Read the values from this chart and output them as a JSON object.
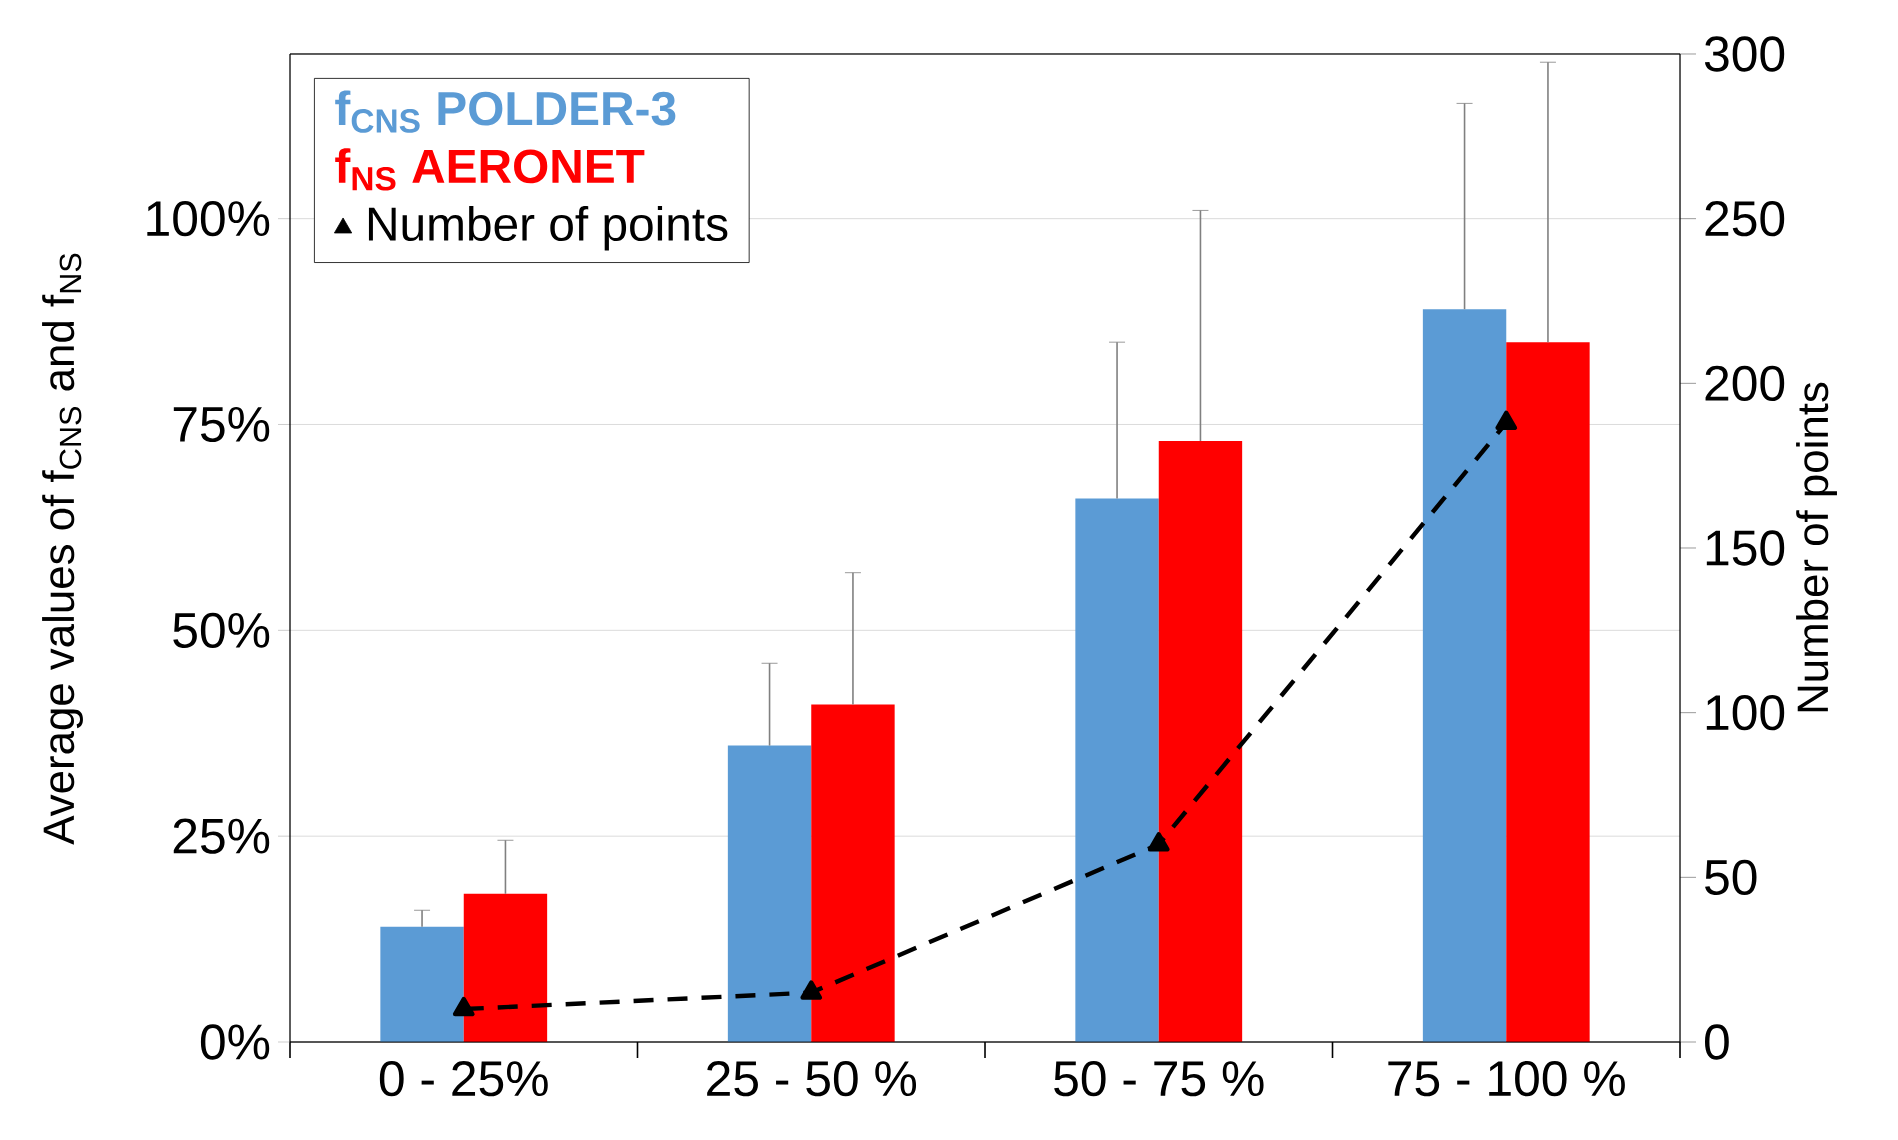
{
  "chart_data": {
    "type": "bar",
    "ylabel": "Average values of f$_{CNS}$ and f$_{NS}$",
    "y2label": "Number of points",
    "categories": [
      "0 - 25%",
      "25 - 50 %",
      "50 - 75 %",
      "75 - 100 %"
    ],
    "series": [
      {
        "name": "f$_{CNS}$ POLDER-3",
        "color": "#5b9bd5",
        "values": [
          14,
          36,
          66,
          89
        ],
        "errors": [
          [
            14,
            16
          ],
          [
            36,
            46
          ],
          [
            66,
            85
          ],
          [
            89,
            114
          ]
        ]
      },
      {
        "name": "f$_{NS}$ AERONET",
        "color": "#ff0000",
        "values": [
          18,
          41,
          73,
          85
        ],
        "errors": [
          [
            18,
            24.5
          ],
          [
            41,
            57
          ],
          [
            73,
            101
          ],
          [
            85,
            119
          ]
        ]
      },
      {
        "name": "Number of points",
        "type": "line",
        "axis": "y2",
        "color": "#000000",
        "values": [
          10,
          15,
          60,
          188
        ],
        "marker": "triangle",
        "line_style": "dashed"
      }
    ],
    "ylim": [
      0,
      120
    ],
    "yticks": [
      {
        "value": 0,
        "label": "0%"
      },
      {
        "value": 25,
        "label": "25%"
      },
      {
        "value": 50,
        "label": "50%"
      },
      {
        "value": 75,
        "label": "75%"
      },
      {
        "value": 100,
        "label": "100%"
      }
    ],
    "y2lim": [
      0,
      300
    ],
    "y2ticks": [
      0,
      50,
      100,
      150,
      200,
      250,
      300
    ],
    "grid": "y",
    "legend": "top left"
  }
}
